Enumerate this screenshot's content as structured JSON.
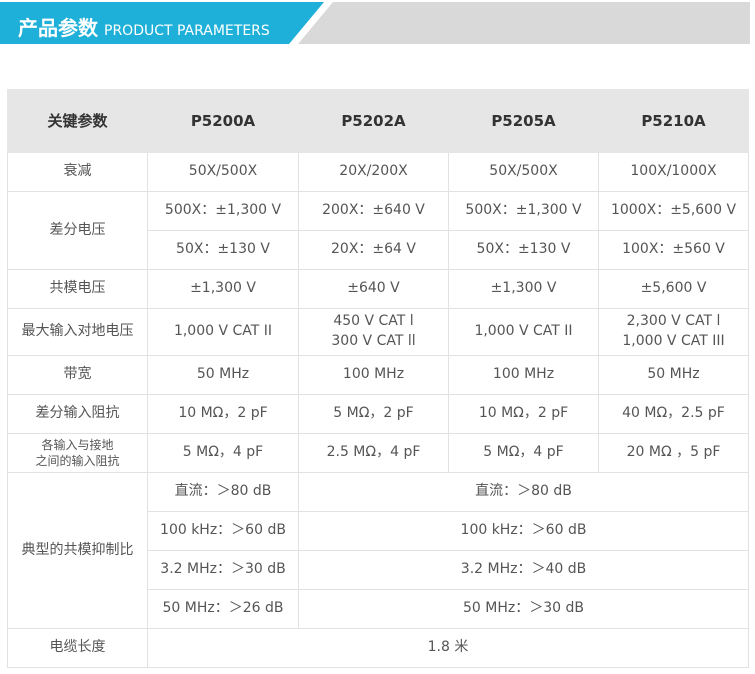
{
  "header": {
    "title_cn": "产品参数",
    "title_en": "PRODUCT PARAMETERS",
    "accent": "#1eb0d8"
  },
  "table": {
    "headers": [
      "关键参数",
      "P5200A",
      "P5202A",
      "P5205A",
      "P5210A"
    ],
    "attenuation": {
      "label": "衰减",
      "values": [
        "50X/500X",
        "20X/200X",
        "50X/500X",
        "100X/1000X"
      ]
    },
    "diff_voltage": {
      "label": "差分电压",
      "high": [
        "500X：±1,300 V",
        "200X：±640 V",
        "500X：±1,300 V",
        "1000X：±5,600 V"
      ],
      "low": [
        "50X：±130 V",
        "20X：±64 V",
        "50X：±130 V",
        "100X：±560 V"
      ]
    },
    "common_voltage": {
      "label": "共模电压",
      "values": [
        "±1,300 V",
        "±640 V",
        "±1,300 V",
        "±5,600 V"
      ]
    },
    "max_input": {
      "label": "最大输入对地电压",
      "values": [
        [
          "1,000 V CAT II"
        ],
        [
          "450 V CAT l",
          "300 V CAT ll"
        ],
        [
          "1,000 V CAT II"
        ],
        [
          "2,300 V CAT l",
          "1,000 V CAT III"
        ]
      ]
    },
    "bandwidth": {
      "label": "带宽",
      "values": [
        "50 MHz",
        "100 MHz",
        "100 MHz",
        "50 MHz"
      ]
    },
    "diff_impedance": {
      "label": "差分输入阻抗",
      "values": [
        "10 MΩ，2 pF",
        "5 MΩ，2 pF",
        "10 MΩ，2 pF",
        "40 MΩ，2.5 pF"
      ]
    },
    "ground_impedance": {
      "label_line1": "各输入与接地",
      "label_line2": "之间的输入阻抗",
      "values": [
        "5 MΩ，4 pF",
        "2.5 MΩ，4 pF",
        "5 MΩ，4 pF",
        "20 MΩ ，5 pF"
      ]
    },
    "cmrr": {
      "label": "典型的共模抑制比",
      "rows": [
        [
          "直流：＞80 dB",
          "直流：＞80 dB"
        ],
        [
          "100 kHz：＞60 dB",
          "100 kHz：＞60 dB"
        ],
        [
          "3.2 MHz：＞30 dB",
          "3.2 MHz：＞40 dB"
        ],
        [
          "50 MHz：＞26 dB",
          "50 MHz：＞30 dB"
        ]
      ]
    },
    "cable": {
      "label": "电缆长度",
      "value": "1.8 米"
    }
  }
}
